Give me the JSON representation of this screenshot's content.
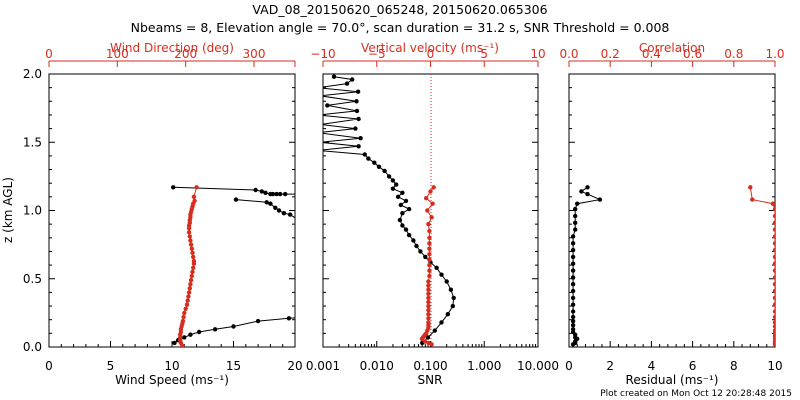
{
  "title_line1": "VAD_08_20150620_065248, 20150620.065306",
  "title_line2": "Nbeams = 8, Elevation angle = 70.0°, scan duration = 31.2 s, SNR Threshold = 0.008",
  "footer": "Plot created on Mon Oct 12 20:28:48 2015",
  "colors": {
    "black": "#000000",
    "red": "#d62d20",
    "red_dark": "#b03a26"
  },
  "chart_data": [
    {
      "type": "line",
      "panel": "wind",
      "ylabel": "z (km AGL)",
      "ylim": [
        0,
        2.0
      ],
      "yticks": [
        "0.0",
        "0.5",
        "1.0",
        "1.5",
        "2.0"
      ],
      "xlabel": "Wind Speed (ms⁻¹)",
      "xlim": [
        0,
        20
      ],
      "xticks": [
        "0",
        "5",
        "10",
        "15",
        "20"
      ],
      "top_label": "Wind Direction (deg)",
      "top_lim": [
        0,
        360
      ],
      "top_ticks": [
        "0",
        "100",
        "200",
        "300"
      ],
      "series": [
        {
          "axis": "bottom",
          "color": "#000000",
          "x": [
            21.0,
            19.5,
            17.0,
            15.0,
            13.5,
            12.2,
            11.5,
            11.0,
            10.5,
            10.2
          ],
          "y": [
            0.22,
            0.21,
            0.19,
            0.15,
            0.13,
            0.11,
            0.09,
            0.07,
            0.05,
            0.03
          ]
        },
        {
          "axis": "bottom",
          "color": "#000000",
          "x": [
            10.1,
            16.8,
            17.3,
            17.6,
            18.0,
            18.2,
            18.5,
            18.8,
            19.2,
            20.2
          ],
          "y": [
            1.17,
            1.15,
            1.14,
            1.13,
            1.12,
            1.12,
            1.12,
            1.12,
            1.12,
            1.12
          ]
        },
        {
          "axis": "bottom",
          "color": "#000000",
          "x": [
            15.2,
            17.7,
            18.0,
            18.4,
            18.7,
            19.1,
            19.6,
            20.3
          ],
          "y": [
            1.08,
            1.06,
            1.05,
            1.02,
            1.0,
            0.98,
            0.97,
            0.93
          ]
        },
        {
          "axis": "top",
          "color": "#d62d20",
          "x": [
            216,
            212,
            213,
            211,
            210,
            209,
            208,
            207,
            207,
            206,
            206,
            205,
            205,
            205,
            206,
            207,
            208,
            209,
            210,
            211,
            212,
            212,
            211,
            210,
            209,
            208,
            207,
            206,
            205,
            204,
            203,
            202,
            200,
            198,
            197,
            196,
            195,
            194,
            193,
            193,
            192,
            192,
            192,
            193,
            195
          ],
          "y": [
            1.17,
            1.1,
            1.07,
            1.05,
            1.03,
            1.01,
            0.99,
            0.97,
            0.95,
            0.93,
            0.91,
            0.89,
            0.87,
            0.84,
            0.81,
            0.78,
            0.75,
            0.72,
            0.69,
            0.66,
            0.63,
            0.61,
            0.58,
            0.55,
            0.52,
            0.49,
            0.46,
            0.43,
            0.4,
            0.37,
            0.34,
            0.31,
            0.28,
            0.25,
            0.22,
            0.19,
            0.17,
            0.15,
            0.13,
            0.11,
            0.09,
            0.07,
            0.05,
            0.03,
            0.01
          ]
        }
      ]
    },
    {
      "type": "line",
      "panel": "vertical",
      "xlabel": "SNR",
      "xscale": "log",
      "xlim": [
        0.001,
        10.0
      ],
      "xticks": [
        "0.001",
        "0.010",
        "0.100",
        "1.000",
        "10.000"
      ],
      "top_label": "Vertical velocity (ms⁻¹)",
      "top_lim": [
        -10,
        10
      ],
      "top_ticks": [
        "−10",
        "−5",
        "0",
        "5",
        "10"
      ],
      "series": [
        {
          "axis": "bottom",
          "color": "#000000",
          "x": [
            0.0016,
            0.0035,
            0.0028,
            0.0008,
            0.0045,
            0.0009,
            0.0042,
            0.0012,
            0.0043,
            0.0008,
            0.0046,
            0.0009,
            0.004,
            0.0008,
            0.005,
            0.0009,
            0.0046,
            0.0008,
            0.006,
            0.007,
            0.009,
            0.011,
            0.014,
            0.017,
            0.02,
            0.023,
            0.02,
            0.03,
            0.025,
            0.035,
            0.028,
            0.04,
            0.03,
            0.027,
            0.03,
            0.035,
            0.04,
            0.048,
            0.055,
            0.065,
            0.08,
            0.1,
            0.13,
            0.16,
            0.2,
            0.24,
            0.27,
            0.26,
            0.21,
            0.16,
            0.12,
            0.09,
            0.07
          ],
          "y": [
            1.98,
            1.96,
            1.93,
            1.9,
            1.87,
            1.84,
            1.8,
            1.77,
            1.73,
            1.7,
            1.67,
            1.63,
            1.6,
            1.57,
            1.53,
            1.5,
            1.47,
            1.44,
            1.41,
            1.38,
            1.35,
            1.32,
            1.29,
            1.25,
            1.22,
            1.19,
            1.16,
            1.13,
            1.1,
            1.07,
            1.04,
            1.01,
            0.98,
            0.93,
            0.89,
            0.86,
            0.82,
            0.78,
            0.74,
            0.7,
            0.66,
            0.62,
            0.58,
            0.53,
            0.48,
            0.42,
            0.36,
            0.3,
            0.24,
            0.18,
            0.12,
            0.07,
            0.03
          ]
        },
        {
          "axis": "top",
          "color": "#d62d20",
          "x": [
            0.3,
            0.0,
            -0.4,
            0.2,
            -0.3,
            0.1,
            -0.2,
            -0.1,
            -0.1,
            -0.1,
            -0.1,
            -0.1,
            -0.1,
            -0.1,
            -0.1,
            -0.1,
            -0.2,
            -0.2,
            -0.2,
            -0.2,
            -0.2,
            -0.2,
            -0.2,
            -0.2,
            -0.2,
            -0.2,
            -0.2,
            -0.2,
            -0.2,
            -0.3,
            -0.4,
            -0.5,
            -0.6,
            -0.7,
            -0.8,
            -0.5,
            -0.2,
            0.1
          ],
          "y": [
            1.17,
            1.14,
            1.09,
            1.05,
            1.0,
            0.95,
            0.9,
            0.85,
            0.8,
            0.76,
            0.72,
            0.68,
            0.64,
            0.6,
            0.56,
            0.52,
            0.48,
            0.45,
            0.42,
            0.39,
            0.36,
            0.33,
            0.3,
            0.27,
            0.24,
            0.21,
            0.18,
            0.16,
            0.14,
            0.12,
            0.1,
            0.09,
            0.08,
            0.07,
            0.06,
            0.04,
            0.03,
            0.02
          ]
        }
      ]
    },
    {
      "type": "line",
      "panel": "residual",
      "xlabel": "Residual (ms⁻¹)",
      "xlim": [
        0,
        10
      ],
      "xticks": [
        "0",
        "2",
        "4",
        "6",
        "8",
        "10"
      ],
      "top_label": "Correlation",
      "top_lim": [
        0.0,
        1.0
      ],
      "top_ticks": [
        "0.0",
        "0.2",
        "0.4",
        "0.6",
        "0.8",
        "1.0"
      ],
      "series": [
        {
          "axis": "bottom",
          "color": "#000000",
          "x": [
            0.9,
            0.6,
            0.9,
            1.5,
            0.4,
            0.3,
            0.3,
            0.3,
            0.3,
            0.2,
            0.2,
            0.2,
            0.2,
            0.2,
            0.2,
            0.2,
            0.2,
            0.2,
            0.2,
            0.2,
            0.2,
            0.2,
            0.2,
            0.2,
            0.2,
            0.2,
            0.3,
            0.3,
            0.4,
            0.3,
            0.3,
            0.2
          ],
          "y": [
            1.17,
            1.14,
            1.12,
            1.08,
            1.05,
            1.01,
            0.96,
            0.91,
            0.86,
            0.81,
            0.76,
            0.71,
            0.66,
            0.61,
            0.56,
            0.51,
            0.46,
            0.41,
            0.36,
            0.31,
            0.26,
            0.22,
            0.19,
            0.16,
            0.13,
            0.11,
            0.09,
            0.07,
            0.06,
            0.04,
            0.03,
            0.02
          ]
        },
        {
          "axis": "top",
          "color": "#d62d20",
          "x": [
            0.88,
            0.89,
            0.99,
            1.0,
            1.0,
            1.0,
            1.0,
            1.0,
            1.0,
            1.0,
            1.0,
            1.0,
            1.0,
            1.0,
            1.0,
            1.0,
            1.0,
            1.0,
            1.0,
            1.0,
            1.0,
            1.0,
            1.0,
            1.0,
            1.0,
            1.0,
            1.0,
            1.0,
            1.0
          ],
          "y": [
            1.17,
            1.08,
            1.05,
            1.01,
            0.96,
            0.91,
            0.86,
            0.81,
            0.76,
            0.71,
            0.66,
            0.61,
            0.56,
            0.51,
            0.46,
            0.41,
            0.36,
            0.31,
            0.26,
            0.22,
            0.18,
            0.15,
            0.12,
            0.1,
            0.08,
            0.06,
            0.04,
            0.03,
            0.02
          ]
        }
      ]
    }
  ]
}
